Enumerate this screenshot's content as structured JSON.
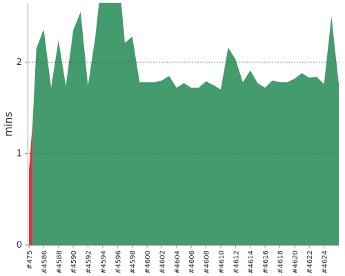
{
  "chart_data": {
    "type": "area",
    "ylabel": "mins",
    "ylim": [
      0,
      2.65
    ],
    "y_ticks": [
      "0",
      "1",
      "2"
    ],
    "grid": "horizontal dashed at 1 and 2",
    "x_tick_labels": [
      "#475",
      "#4586",
      "#4588",
      "#4590",
      "#4592",
      "#4594",
      "#4596",
      "#4598",
      "#4600",
      "#4602",
      "#4604",
      "#4606",
      "#4608",
      "#4610",
      "#4612",
      "#4614",
      "#4616",
      "#4618",
      "#4620",
      "#4622",
      "#4624"
    ],
    "series": [
      {
        "color": "#d9383a",
        "points": [
          [
            0,
            0.82
          ],
          [
            0.5,
            1.35
          ]
        ]
      },
      {
        "color": "#449b6d",
        "points": [
          [
            0.5,
            1.35
          ],
          [
            1,
            2.15
          ],
          [
            2,
            2.36
          ],
          [
            3,
            1.72
          ],
          [
            4,
            2.24
          ],
          [
            5,
            1.74
          ],
          [
            6,
            2.35
          ],
          [
            7,
            2.55
          ],
          [
            8,
            1.74
          ],
          [
            9,
            2.28
          ],
          [
            9.5,
            2.65
          ],
          [
            12.5,
            2.65
          ],
          [
            13,
            2.21
          ],
          [
            14,
            2.28
          ],
          [
            15,
            1.78
          ],
          [
            16,
            1.78
          ],
          [
            17,
            1.78
          ],
          [
            18,
            1.8
          ],
          [
            19,
            1.85
          ],
          [
            20,
            1.72
          ],
          [
            21,
            1.77
          ],
          [
            22,
            1.72
          ],
          [
            23,
            1.72
          ],
          [
            24,
            1.79
          ],
          [
            25,
            1.75
          ],
          [
            26,
            1.7
          ],
          [
            27,
            2.16
          ],
          [
            28,
            2.03
          ],
          [
            29,
            1.78
          ],
          [
            30,
            1.91
          ],
          [
            31,
            1.77
          ],
          [
            32,
            1.72
          ],
          [
            33,
            1.8
          ],
          [
            34,
            1.78
          ],
          [
            35,
            1.78
          ],
          [
            36,
            1.82
          ],
          [
            37,
            1.88
          ],
          [
            38,
            1.83
          ],
          [
            39,
            1.84
          ],
          [
            40,
            1.76
          ],
          [
            41,
            2.5
          ],
          [
            42,
            1.76
          ]
        ]
      }
    ],
    "x_index_max": 42
  }
}
